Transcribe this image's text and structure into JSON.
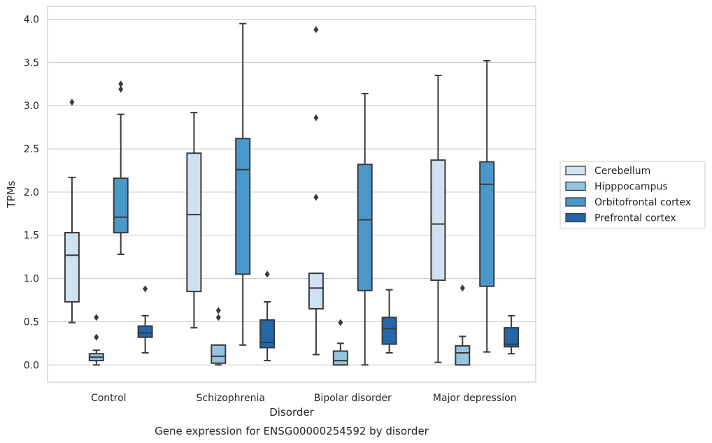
{
  "chart_data": {
    "type": "box",
    "caption": "Gene expression for ENSG00000254592 by disorder",
    "xlabel": "Disorder",
    "ylabel": "TPMs",
    "ylim": [
      -0.2,
      4.15
    ],
    "yticks": [
      0.0,
      0.5,
      1.0,
      1.5,
      2.0,
      2.5,
      3.0,
      3.5,
      4.0
    ],
    "ytick_labels": [
      "0.0",
      "0.5",
      "1.0",
      "1.5",
      "2.0",
      "2.5",
      "3.0",
      "3.5",
      "4.0"
    ],
    "grid": "horizontal",
    "legend_position": "right",
    "categories": [
      "Control",
      "Schizophrenia",
      "Bipolar disorder",
      "Major depression"
    ],
    "series": [
      {
        "name": "Cerebellum",
        "color": "#d0e1f2",
        "boxes": [
          {
            "whislo": 0.49,
            "q1": 0.73,
            "med": 1.27,
            "q3": 1.53,
            "whishi": 2.17,
            "fliers": [
              3.04
            ]
          },
          {
            "whislo": 0.43,
            "q1": 0.85,
            "med": 1.74,
            "q3": 2.45,
            "whishi": 2.92,
            "fliers": []
          },
          {
            "whislo": 0.12,
            "q1": 0.65,
            "med": 0.89,
            "q3": 1.06,
            "whishi": 1.06,
            "fliers": [
              1.94,
              2.86,
              3.88
            ]
          },
          {
            "whislo": 0.03,
            "q1": 0.98,
            "med": 1.63,
            "q3": 2.37,
            "whishi": 3.35,
            "fliers": []
          }
        ]
      },
      {
        "name": "Hipppocampus",
        "color": "#94c4df",
        "boxes": [
          {
            "whislo": 0.0,
            "q1": 0.05,
            "med": 0.09,
            "q3": 0.13,
            "whishi": 0.17,
            "fliers": [
              0.32,
              0.55
            ]
          },
          {
            "whislo": 0.0,
            "q1": 0.02,
            "med": 0.1,
            "q3": 0.23,
            "whishi": 0.23,
            "fliers": [
              0.55,
              0.63
            ]
          },
          {
            "whislo": 0.0,
            "q1": 0.0,
            "med": 0.05,
            "q3": 0.16,
            "whishi": 0.25,
            "fliers": [
              0.49
            ]
          },
          {
            "whislo": 0.0,
            "q1": 0.0,
            "med": 0.14,
            "q3": 0.22,
            "whishi": 0.33,
            "fliers": [
              0.89
            ]
          }
        ]
      },
      {
        "name": "Orbitofrontal cortex",
        "color": "#4a98c9",
        "boxes": [
          {
            "whislo": 1.28,
            "q1": 1.53,
            "med": 1.71,
            "q3": 2.16,
            "whishi": 2.9,
            "fliers": [
              3.19,
              3.25
            ]
          },
          {
            "whislo": 0.23,
            "q1": 1.05,
            "med": 2.26,
            "q3": 2.62,
            "whishi": 3.95,
            "fliers": []
          },
          {
            "whislo": 0.0,
            "q1": 0.86,
            "med": 1.68,
            "q3": 2.32,
            "whishi": 3.14,
            "fliers": []
          },
          {
            "whislo": 0.15,
            "q1": 0.91,
            "med": 2.09,
            "q3": 2.35,
            "whishi": 3.52,
            "fliers": []
          }
        ]
      },
      {
        "name": "Prefrontal cortex",
        "color": "#2366ac",
        "boxes": [
          {
            "whislo": 0.14,
            "q1": 0.32,
            "med": 0.37,
            "q3": 0.45,
            "whishi": 0.57,
            "fliers": [
              0.88
            ]
          },
          {
            "whislo": 0.05,
            "q1": 0.2,
            "med": 0.26,
            "q3": 0.52,
            "whishi": 0.73,
            "fliers": [
              1.05
            ]
          },
          {
            "whislo": 0.14,
            "q1": 0.24,
            "med": 0.42,
            "q3": 0.55,
            "whishi": 0.87,
            "fliers": []
          },
          {
            "whislo": 0.13,
            "q1": 0.21,
            "med": 0.24,
            "q3": 0.43,
            "whishi": 0.57,
            "fliers": []
          }
        ]
      }
    ]
  }
}
